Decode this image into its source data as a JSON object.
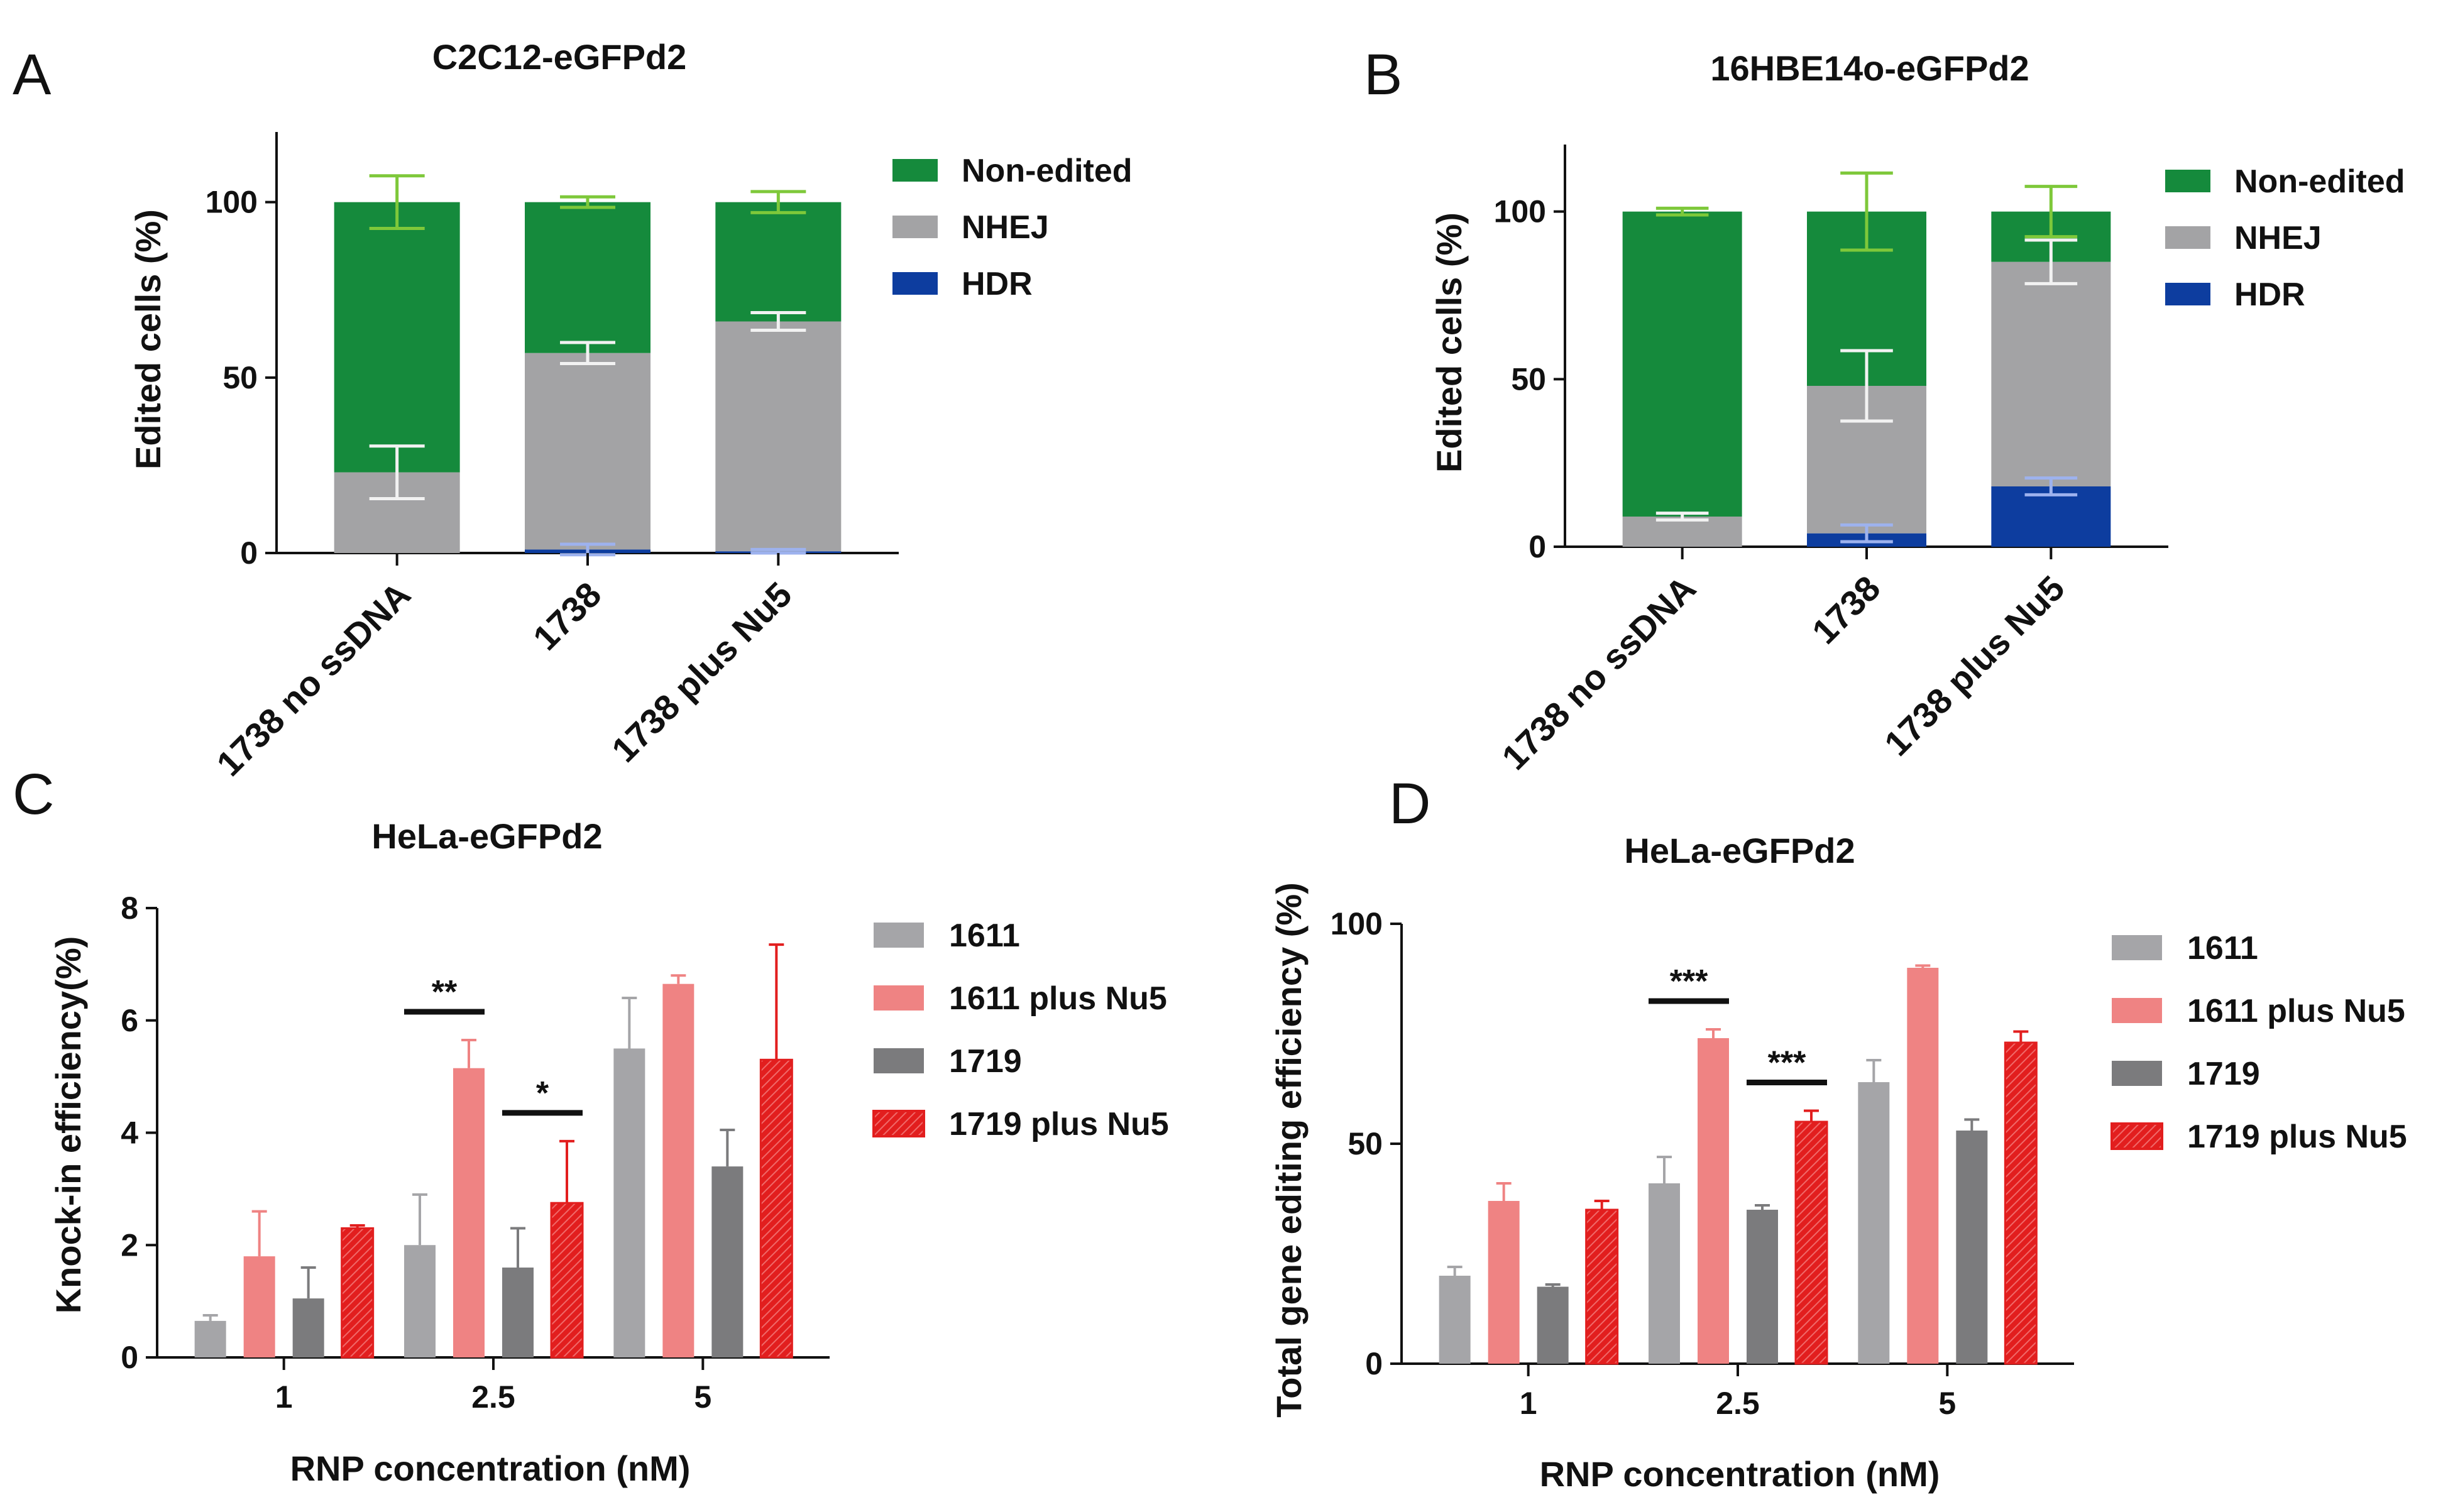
{
  "colors": {
    "non_edited": "#158a3c",
    "nhej": "#a3a3a5",
    "hdr": "#0d3d9f",
    "nonedited_err": "#7ec83a",
    "s1611": "#a5a5a8",
    "s1611nu5": "#ef8383",
    "s1719": "#7b7b7d",
    "s1719nu5": "#e21e1e",
    "axis": "#111111"
  },
  "chart_data": [
    {
      "panel": "A",
      "type": "bar",
      "stacked": true,
      "title": "C2C12-eGFPd2",
      "ylabel": "Edited cells (%)",
      "xlabel": "",
      "ylim": [
        0,
        120
      ],
      "yticks": [
        "0",
        "50",
        "100"
      ],
      "categories": [
        "1738 no ssDNA",
        "1738",
        "1738 plus Nu5"
      ],
      "legend": [
        "Non-edited",
        "NHEJ",
        "HDR"
      ],
      "series": [
        {
          "name": "HDR",
          "values": [
            0,
            1,
            0.5
          ],
          "errors": [
            0,
            1.5,
            0.5
          ]
        },
        {
          "name": "NHEJ",
          "values": [
            23,
            56,
            65.5
          ],
          "errors": [
            7.5,
            3,
            2.5
          ]
        },
        {
          "name": "Non-edited",
          "values": [
            77,
            43,
            34
          ],
          "errors": [
            7.5,
            1.5,
            3
          ]
        }
      ]
    },
    {
      "panel": "B",
      "type": "bar",
      "stacked": true,
      "title": "16HBE14o-eGFPd2",
      "ylabel": "Edited cells (%)",
      "xlabel": "",
      "ylim": [
        0,
        120
      ],
      "yticks": [
        "0",
        "50",
        "100"
      ],
      "categories": [
        "1738 no ssDNA",
        "1738",
        "1738 plus Nu5"
      ],
      "legend": [
        "Non-edited",
        "NHEJ",
        "HDR"
      ],
      "series": [
        {
          "name": "HDR",
          "values": [
            0,
            4,
            18
          ],
          "errors": [
            0,
            2.5,
            2.5
          ]
        },
        {
          "name": "NHEJ",
          "values": [
            9,
            44,
            67
          ],
          "errors": [
            1,
            10.5,
            6.5
          ]
        },
        {
          "name": "Non-edited",
          "values": [
            91,
            52,
            15
          ],
          "errors": [
            1,
            11.5,
            7.5
          ]
        }
      ]
    },
    {
      "panel": "C",
      "type": "bar",
      "stacked": false,
      "title": "HeLa-eGFPd2",
      "ylabel": "Knock-in efficiency(%)",
      "xlabel": "RNP concentration (nM)",
      "ylim": [
        0,
        8
      ],
      "yticks": [
        "0",
        "2",
        "4",
        "6",
        "8"
      ],
      "categories": [
        "1",
        "2.5",
        "5"
      ],
      "legend": [
        "1611",
        "1611 plus Nu5",
        "1719",
        "1719 plus Nu5"
      ],
      "series": [
        {
          "name": "1611",
          "values": [
            0.65,
            2.0,
            5.5
          ],
          "errors": [
            0.1,
            0.9,
            0.9
          ]
        },
        {
          "name": "1611 plus Nu5",
          "values": [
            1.8,
            5.15,
            6.65
          ],
          "errors": [
            0.8,
            0.5,
            0.15
          ]
        },
        {
          "name": "1719",
          "values": [
            1.05,
            1.6,
            3.4
          ],
          "errors": [
            0.55,
            0.7,
            0.65
          ]
        },
        {
          "name": "1719 plus Nu5",
          "values": [
            2.3,
            2.75,
            5.3
          ],
          "errors": [
            0.05,
            1.1,
            2.05
          ]
        }
      ],
      "significance": [
        {
          "label": "**",
          "category": "2.5",
          "pair": [
            "1611",
            "1611 plus Nu5"
          ]
        },
        {
          "label": "*",
          "category": "2.5",
          "pair": [
            "1719",
            "1719 plus Nu5"
          ]
        }
      ]
    },
    {
      "panel": "D",
      "type": "bar",
      "stacked": false,
      "title": "HeLa-eGFPd2",
      "ylabel": "Total gene editing efficiency (%)",
      "xlabel": "RNP concentration (nM)",
      "ylim": [
        0,
        100
      ],
      "yticks": [
        "0",
        "50",
        "100"
      ],
      "categories": [
        "1",
        "2.5",
        "5"
      ],
      "legend": [
        "1611",
        "1611 plus Nu5",
        "1719",
        "1719 plus Nu5"
      ],
      "series": [
        {
          "name": "1611",
          "values": [
            20,
            41,
            64
          ],
          "errors": [
            2,
            6,
            5
          ]
        },
        {
          "name": "1611 plus Nu5",
          "values": [
            37,
            74,
            90
          ],
          "errors": [
            4,
            2,
            0.5
          ]
        },
        {
          "name": "1719",
          "values": [
            17.5,
            35,
            53
          ],
          "errors": [
            0.5,
            1,
            2.5
          ]
        },
        {
          "name": "1719 plus Nu5",
          "values": [
            35,
            55,
            73
          ],
          "errors": [
            2,
            2.5,
            2.5
          ]
        }
      ],
      "significance": [
        {
          "label": "***",
          "category": "2.5",
          "pair": [
            "1611",
            "1611 plus Nu5"
          ]
        },
        {
          "label": "***",
          "category": "2.5",
          "pair": [
            "1719",
            "1719 plus Nu5"
          ]
        }
      ]
    }
  ]
}
